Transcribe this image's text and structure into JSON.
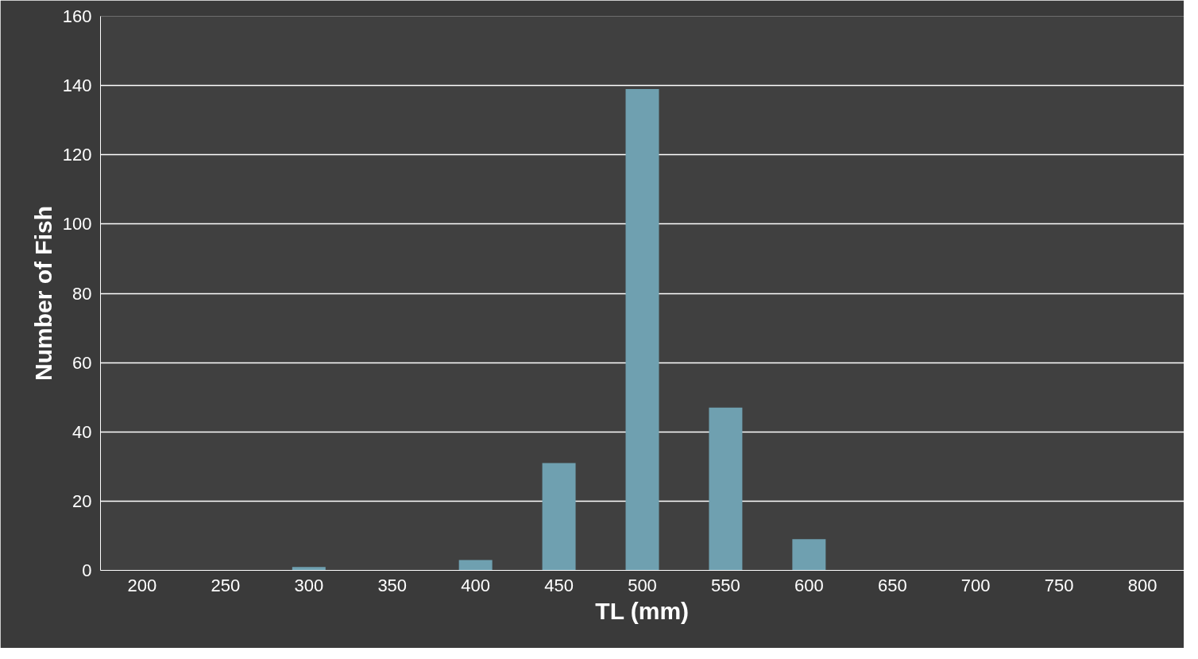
{
  "chart_data": {
    "type": "bar",
    "xlabel": "TL (mm)",
    "ylabel": "Number of Fish",
    "categories": [
      "200",
      "250",
      "300",
      "350",
      "400",
      "450",
      "500",
      "550",
      "600",
      "650",
      "700",
      "750",
      "800"
    ],
    "values": [
      0,
      0,
      1,
      0,
      3,
      31,
      139,
      47,
      9,
      0,
      0,
      0,
      0
    ],
    "color": "#6fa0b0",
    "ylim": [
      0,
      160
    ],
    "yticks": [
      0,
      20,
      40,
      60,
      80,
      100,
      120,
      140,
      160
    ],
    "grid": "y"
  }
}
